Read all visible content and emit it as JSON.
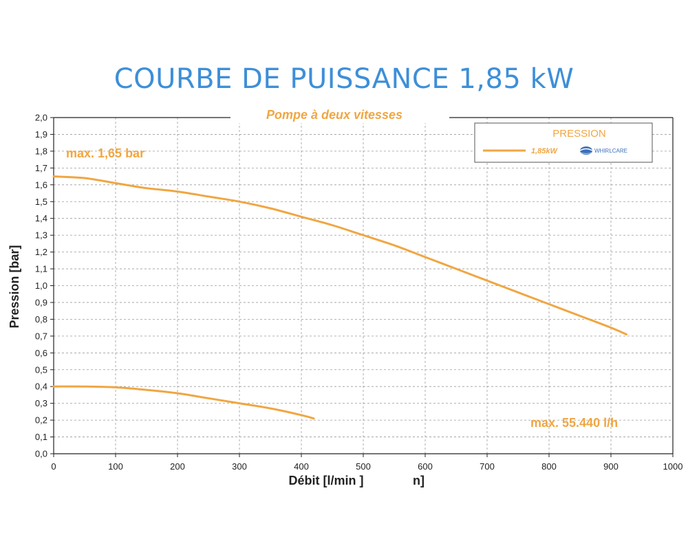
{
  "page": {
    "title": "COURBE DE PUISSANCE 1,85 kW"
  },
  "chart_data": {
    "type": "line",
    "subtitle": "Pompe à deux vitesses",
    "xlabel": "Débit [l/min ]",
    "xlabel_extra": "n]",
    "ylabel": "Pression [bar]",
    "xlim": [
      0,
      1000
    ],
    "ylim": [
      0,
      2.0
    ],
    "x_ticks": [
      "0",
      "100",
      "200",
      "300",
      "400",
      "500",
      "600",
      "700",
      "800",
      "900",
      "1000"
    ],
    "y_ticks": [
      "0,0",
      "0,1",
      "0,2",
      "0,3",
      "0,4",
      "0,5",
      "0,6",
      "0,7",
      "0,8",
      "0,9",
      "1,0",
      "1,1",
      "1,2",
      "1,3",
      "1,4",
      "1,5",
      "1,6",
      "1,7",
      "1,8",
      "1,9",
      "2,0"
    ],
    "grid": true,
    "legend": {
      "title": "PRESSION",
      "entry": "1,85kW",
      "brand": "WHIRLCARE",
      "placement": "top-right"
    },
    "annotations": {
      "max_pressure": "max. 1,65 bar",
      "max_flow": "max. 55.440 l/h"
    },
    "series": [
      {
        "x": [
          0,
          50,
          100,
          150,
          200,
          250,
          300,
          350,
          400,
          450,
          500,
          550,
          600,
          650,
          700,
          750,
          800,
          850,
          900,
          925
        ],
        "y": [
          1.65,
          1.64,
          1.61,
          1.58,
          1.56,
          1.53,
          1.5,
          1.46,
          1.41,
          1.36,
          1.3,
          1.24,
          1.17,
          1.1,
          1.03,
          0.96,
          0.89,
          0.82,
          0.75,
          0.71
        ]
      },
      {
        "x": [
          0,
          50,
          100,
          150,
          200,
          250,
          300,
          350,
          400,
          420
        ],
        "y": [
          0.4,
          0.4,
          0.395,
          0.38,
          0.36,
          0.33,
          0.3,
          0.27,
          0.23,
          0.21
        ]
      }
    ],
    "colors": {
      "series": "#f0a642",
      "title": "#3d8fd8",
      "grid": "#9a9a9a"
    }
  }
}
